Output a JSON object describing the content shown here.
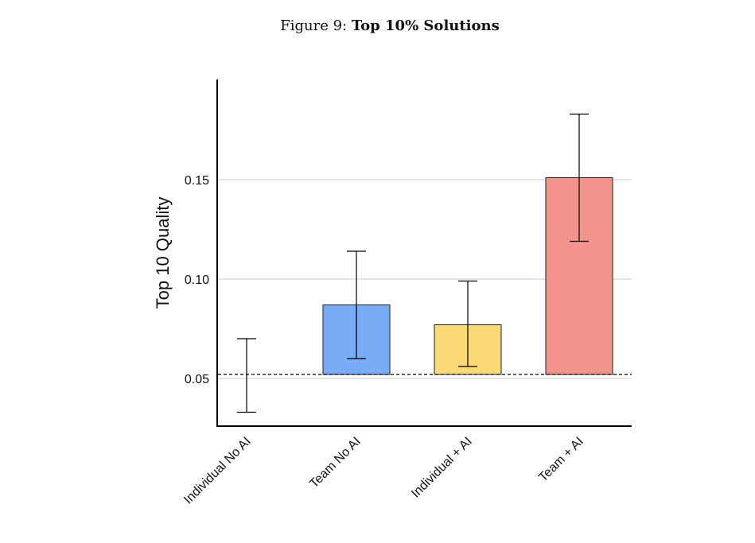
{
  "figure": {
    "prefix": "Figure 9:",
    "title": "Top 10% Solutions"
  },
  "chart_data": {
    "type": "bar",
    "ylabel": "Top 10 Quality",
    "xlabel": "",
    "ylim": [
      0.025,
      0.2
    ],
    "yticks": [
      0.05,
      0.1,
      0.15
    ],
    "ytick_labels": [
      "0.05",
      "0.10",
      "0.15"
    ],
    "grid": "horizontal",
    "baseline": 0.052,
    "categories": [
      "Individual No AI",
      "Team No AI",
      "Individual + AI",
      "Team + AI"
    ],
    "values": [
      0.052,
      0.087,
      0.077,
      0.151
    ],
    "ci_low": [
      0.033,
      0.06,
      0.056,
      0.119
    ],
    "ci_high": [
      0.07,
      0.114,
      0.099,
      0.183
    ],
    "colors": [
      "#ffffff",
      "#7aabf7",
      "#fbd976",
      "#f2948b"
    ]
  }
}
